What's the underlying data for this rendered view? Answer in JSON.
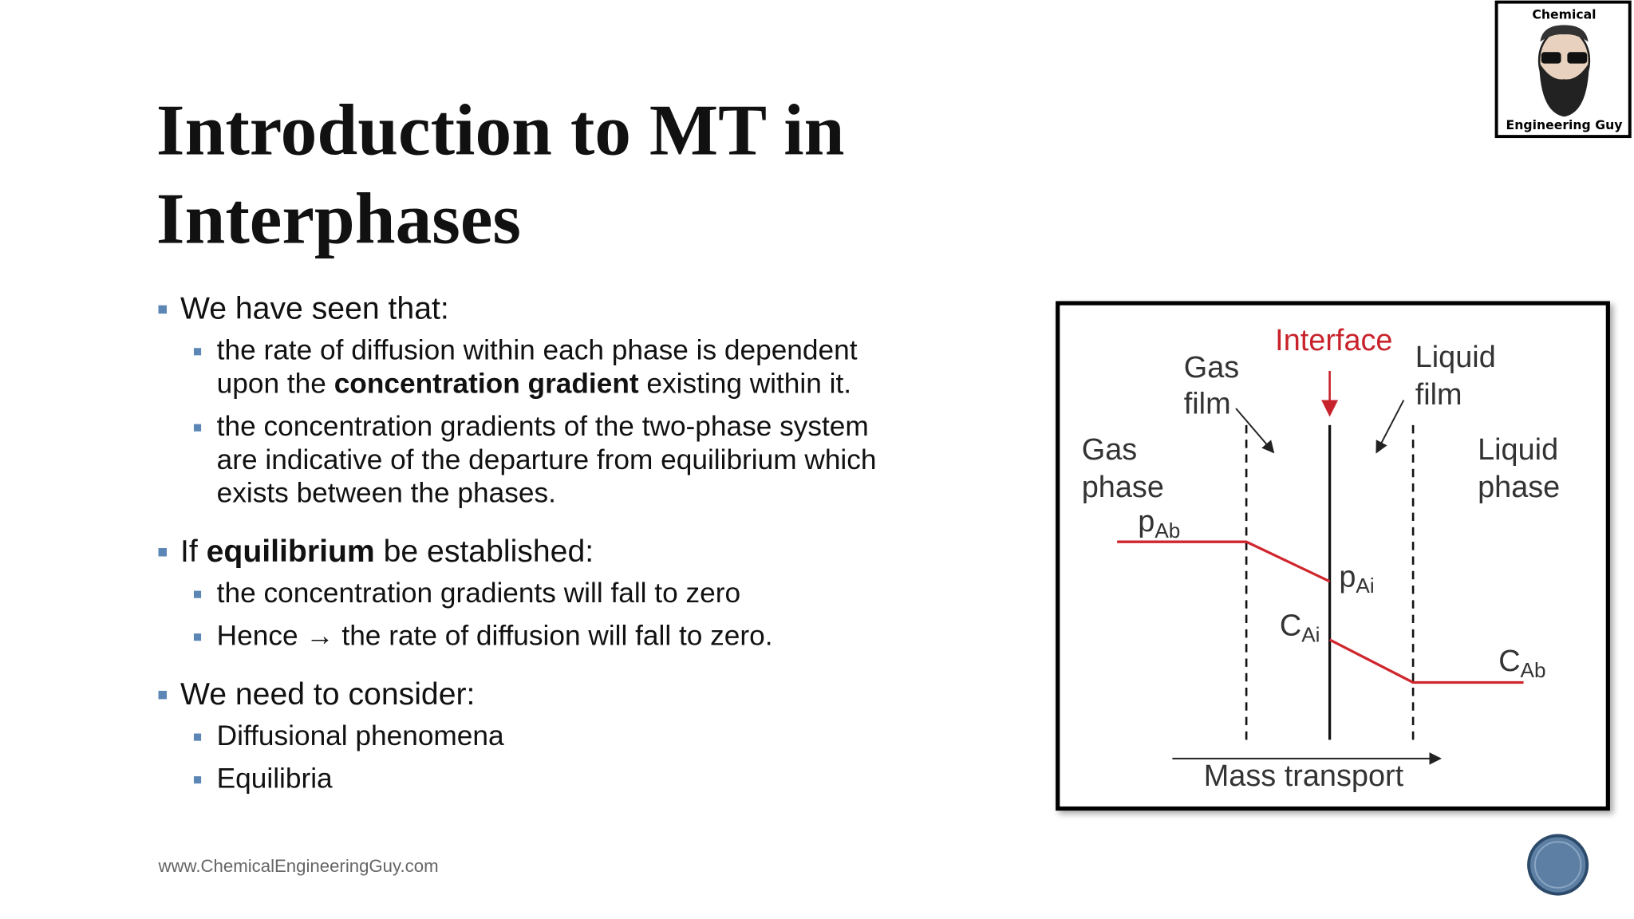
{
  "header": {
    "title": [
      "Introduction to MT in",
      "Interphases"
    ]
  },
  "bullets": [
    {
      "lines": [
        [
          {
            "text": "We have seen that:"
          }
        ]
      ],
      "items": [
        {
          "lines": [
            [
              {
                "text": "the rate of diffusion within each phase is dependent"
              }
            ],
            [
              {
                "text": "upon the "
              },
              {
                "text": "concentration gradient",
                "bold": true
              },
              {
                "text": " existing within it."
              }
            ]
          ]
        },
        {
          "lines": [
            [
              {
                "text": "the concentration gradients of the two-phase system"
              }
            ],
            [
              {
                "text": "are indicative of the departure from equilibrium which"
              }
            ],
            [
              {
                "text": "exists between the phases."
              }
            ]
          ]
        }
      ]
    },
    {
      "lines": [
        [
          {
            "text": "If "
          },
          {
            "text": "equilibrium",
            "bold": true
          },
          {
            "text": " be established:"
          }
        ]
      ],
      "items": [
        {
          "lines": [
            [
              {
                "text": "the concentration gradients will fall to zero"
              }
            ]
          ]
        },
        {
          "lines": [
            [
              {
                "text": "Hence → the rate of diffusion will fall to zero."
              }
            ]
          ]
        }
      ]
    },
    {
      "lines": [
        [
          {
            "text": "We need to consider:"
          }
        ]
      ],
      "items": [
        {
          "lines": [
            [
              {
                "text": "Diffusional phenomena"
              }
            ]
          ]
        },
        {
          "lines": [
            [
              {
                "text": "Equilibria"
              }
            ]
          ]
        }
      ]
    }
  ],
  "diagram": {
    "interface": "Interface",
    "gas_film": [
      "Gas",
      "film"
    ],
    "liquid_film": [
      "Liquid",
      "film"
    ],
    "gas_phase": [
      "Gas",
      "phase"
    ],
    "liquid_phase": [
      "Liquid",
      "phase"
    ],
    "p_ab": {
      "main": "p",
      "sub": "Ab"
    },
    "p_ai": {
      "main": "p",
      "sub": "Ai"
    },
    "c_ai": {
      "main": "C",
      "sub": "Ai"
    },
    "c_ab": {
      "main": "C",
      "sub": "Ab"
    },
    "axis": "Mass transport"
  },
  "logo": {
    "top": "Chemical",
    "bottom": "Engineering Guy"
  },
  "footer": {
    "url": "www.ChemicalEngineeringGuy.com"
  }
}
